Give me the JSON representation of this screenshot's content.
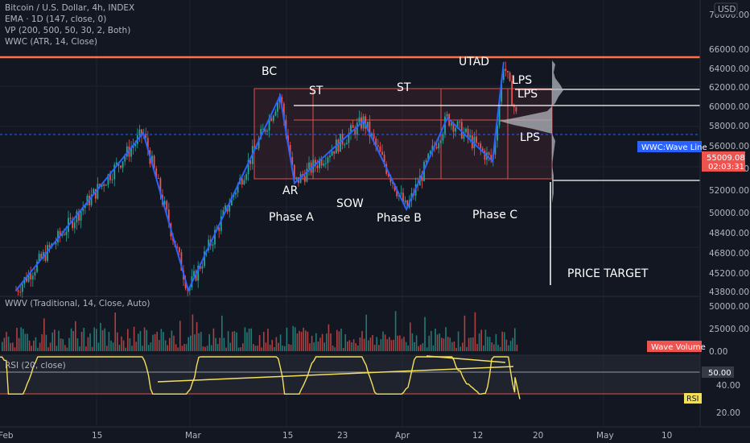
{
  "legend": {
    "symbol": "Bitcoin / U.S. Dollar, 4h, INDEX",
    "ema": "EMA · 1D (147, close, 0)",
    "vp": "VP (200, 500, 50, 30, 2, Both)",
    "wwc": "WWC (ATR, 14, Close)",
    "wwv": "WWV (Traditional, 14, Close, Auto)",
    "rsi": "RSI (20, close)"
  },
  "currency": "USD",
  "colors": {
    "background": "#131722",
    "up": "#26a69a",
    "down": "#ef5350",
    "wave": "#2962ff",
    "rsi": "#f5e05a",
    "range": "#e0524f",
    "resistance": "#ff7043"
  },
  "labels": {
    "wave_line": "WWC:Wave Line",
    "last_price": "55009.08",
    "countdown": "02:03:31",
    "wave_volume": "Wave Volume",
    "rsi_value": "50.00",
    "rsi_badge": "RSI",
    "price_target": "PRICE TARGET"
  },
  "chart_data": [
    {
      "type": "candlestick",
      "ylim": [
        43800,
        70000
      ],
      "y_ticks": [
        "70000.00",
        "66000.00",
        "64000.00",
        "62000.00",
        "60000.00",
        "58000.00",
        "56000.00",
        "54000.00",
        "52000.00",
        "50000.00",
        "48400.00",
        "46800.00",
        "45200.00",
        "43800.00"
      ],
      "x_ticks": [
        "Feb",
        "15",
        "Mar",
        "15",
        "23",
        "Apr",
        "12",
        "20",
        "May",
        "10"
      ],
      "swing_points": [
        {
          "label": "",
          "price": 44000
        },
        {
          "label": "",
          "price": 58400
        },
        {
          "label": "",
          "price": 44000
        },
        {
          "label": "BC",
          "price": 61800
        },
        {
          "label": "AR",
          "price": 53800
        },
        {
          "label": "ST",
          "price": 59500
        },
        {
          "label": "SOW",
          "price": 51400
        },
        {
          "label": "ST",
          "price": 59800
        },
        {
          "label": "",
          "price": 55800
        },
        {
          "label": "UTAD",
          "price": 64900
        },
        {
          "label": "LPS",
          "price": 62000
        },
        {
          "label": "LPS",
          "price": 59800
        },
        {
          "label": "LPS",
          "price": 56500
        }
      ],
      "annotations": [
        "BC",
        "ST",
        "ST",
        "UTAD",
        "LPS",
        "LPS",
        "AR",
        "SOW",
        "LPS",
        "Phase A",
        "Phase B",
        "Phase C"
      ],
      "levels": [
        65600,
        61900,
        60000,
        57200,
        53100
      ],
      "last_price": 55009.08
    },
    {
      "type": "bar",
      "title": "WWV (Traditional, 14, Close, Auto)",
      "ylim": [
        0,
        50000
      ],
      "y_ticks": [
        "50000.00",
        "25000.00",
        "0.00"
      ]
    },
    {
      "type": "line",
      "title": "RSI (20, close)",
      "ylim": [
        20,
        70
      ],
      "y_ticks": [
        "50.00",
        "40.00",
        "20.00"
      ],
      "levels": [
        50,
        33
      ]
    }
  ]
}
